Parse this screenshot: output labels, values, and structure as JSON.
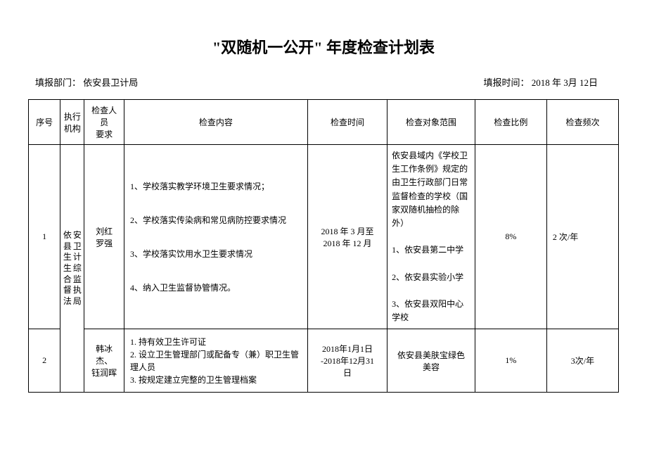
{
  "title": "\"双随机一公开\" 年度检查计划表",
  "meta": {
    "left_label": "填报部门：",
    "left_value": "依安县卫计局",
    "right_label": "填报时间：",
    "right_value": "2018  年  3月  12日"
  },
  "headers": {
    "seq": "序号",
    "org": "执行\n机构",
    "staff": "检查人员\n要求",
    "content": "检查内容",
    "time": "检查时间",
    "scope": "检查对象范围",
    "ratio": "检查比例",
    "freq": "检查频次"
  },
  "rows": [
    {
      "seq": "1",
      "org": "依安县卫生生合督法局 卫计综监执",
      "staff": "刘红\n罗强",
      "content": "1、学校落实教学环境卫生要求情况；\n\n2、学校落实传染病和常见病防控要求情况\n\n3、学校落实饮用水卫生要求情况\n\n4、纳入卫生监督协管情况。",
      "time": "2018 年 3 月至\n2018 年 12 月",
      "scope": "依安县域内《学校卫生工作条例》规定的由卫生行政部门日常监督检查的学校（国家双随机抽检的除外）\n\n1、依安县第二中学\n\n2、依安县实验小学\n\n3、依安县双阳中心学校",
      "ratio": "8%",
      "freq": "2 次/年"
    },
    {
      "seq": "2",
      "staff": "韩冰杰、\n钰润晖",
      "content": "1.  持有效卫生许可证\n2.  设立卫生管理部门或配备专（兼）职卫生管理人员\n3.  按规定建立完整的卫生管理档案",
      "time": "2018年1月1日\n-2018年12月31\n日",
      "scope": "依安县美肤宝绿色\n美容",
      "ratio": "1%",
      "freq": "3次/年"
    }
  ]
}
